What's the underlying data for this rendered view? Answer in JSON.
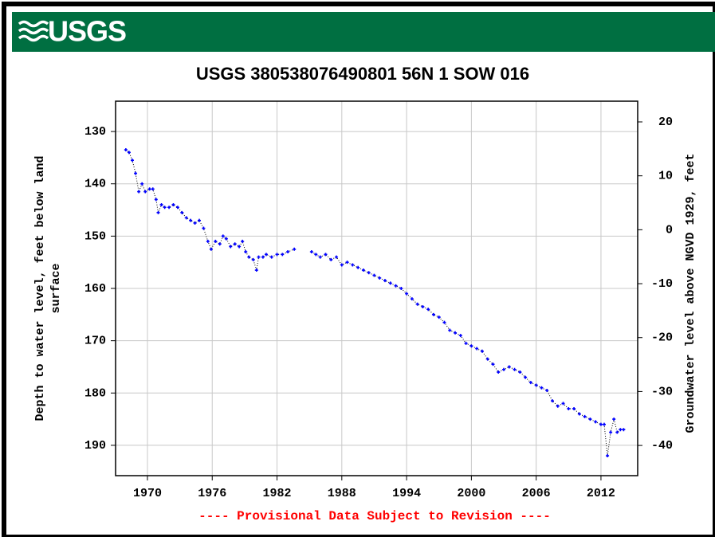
{
  "header": {
    "logo": "USGS"
  },
  "chart_data": {
    "type": "line",
    "title": "USGS 380538076490801 56N  1 SOW 016",
    "ylabel": [
      "Depth to water level, feet below land",
      "surface"
    ],
    "y2label": "Groundwater level above NGVD 1929, feet",
    "footer": "---- Provisional Data Subject to Revision ----",
    "xlim": [
      1967.05,
      2015.4
    ],
    "xticks": [
      1970,
      1976,
      1982,
      1988,
      1994,
      2000,
      2006,
      2012
    ],
    "ylim": [
      195.8,
      124.2
    ],
    "yticks": [
      130,
      140,
      150,
      160,
      170,
      180,
      190
    ],
    "y2lim": [
      -45.6,
      23.84
    ],
    "y2ticks": [
      20,
      10,
      0,
      -10,
      -20,
      -30,
      -40
    ],
    "grid": true,
    "x": [
      1968.0,
      1968.3,
      1968.6,
      1968.9,
      1969.2,
      1969.5,
      1969.8,
      1970.2,
      1970.5,
      1970.8,
      1971.0,
      1971.3,
      1971.6,
      1972.0,
      1972.4,
      1972.8,
      1973.2,
      1973.6,
      1974.0,
      1974.4,
      1974.8,
      1975.2,
      1975.6,
      1975.9,
      1976.3,
      1976.7,
      1977.0,
      1977.3,
      1977.7,
      1978.1,
      1978.5,
      1978.8,
      1979.1,
      1979.4,
      1979.8,
      1980.1,
      1980.3,
      1980.7,
      1981.0,
      1981.5,
      1982.0,
      1982.5,
      1983.0,
      1983.6,
      null,
      1985.2,
      1985.6,
      1986.0,
      1986.5,
      1987.0,
      1987.5,
      1988.0,
      1988.5,
      1989.0,
      1989.5,
      1990.0,
      1990.5,
      1991.0,
      1991.5,
      1992.0,
      1992.5,
      1993.0,
      1993.5,
      1994.0,
      1994.5,
      1995.0,
      1995.5,
      1996.0,
      1996.5,
      1997.0,
      1997.5,
      1998.0,
      1998.5,
      1999.0,
      1999.5,
      2000.0,
      2000.5,
      2001.0,
      2001.5,
      2002.0,
      2002.5,
      2003.0,
      2003.5,
      2004.0,
      2004.5,
      2005.0,
      2005.5,
      2006.0,
      2006.5,
      2007.0,
      2007.5,
      2008.0,
      2008.5,
      2009.0,
      2009.5,
      2010.0,
      2010.5,
      2011.0,
      2011.5,
      2012.0,
      2012.3,
      2012.6,
      2012.9,
      2013.2,
      2013.5,
      2013.8,
      2014.1
    ],
    "series": [
      {
        "color": "#0000ff",
        "values": [
          133.5,
          134,
          135.5,
          138,
          141.5,
          140,
          141.5,
          141,
          141,
          143,
          145.5,
          144,
          144.5,
          144.5,
          144,
          144.5,
          145.5,
          146.5,
          147,
          147.5,
          147,
          148.5,
          151,
          152.5,
          151,
          151.5,
          150,
          150.5,
          152,
          151.5,
          152,
          151,
          153,
          154,
          154.5,
          156.5,
          154,
          154,
          153.5,
          154,
          153.5,
          153.5,
          153,
          152.5,
          null,
          153,
          153.5,
          154,
          153.5,
          154.5,
          154,
          155.5,
          155,
          155.5,
          156,
          156.5,
          157,
          157.5,
          158,
          158.5,
          159,
          159.5,
          160,
          161,
          162,
          163,
          163.5,
          164,
          165,
          165.5,
          166.5,
          168,
          168.5,
          169,
          170.5,
          171,
          171.5,
          172,
          173.5,
          174.5,
          176,
          175.5,
          175,
          175.5,
          176,
          177,
          178,
          178.5,
          179,
          179.5,
          181.5,
          182.5,
          182,
          183,
          183,
          184,
          184.5,
          185,
          185.5,
          186,
          186,
          192,
          187.5,
          185,
          187.5,
          187,
          187
        ]
      }
    ]
  }
}
